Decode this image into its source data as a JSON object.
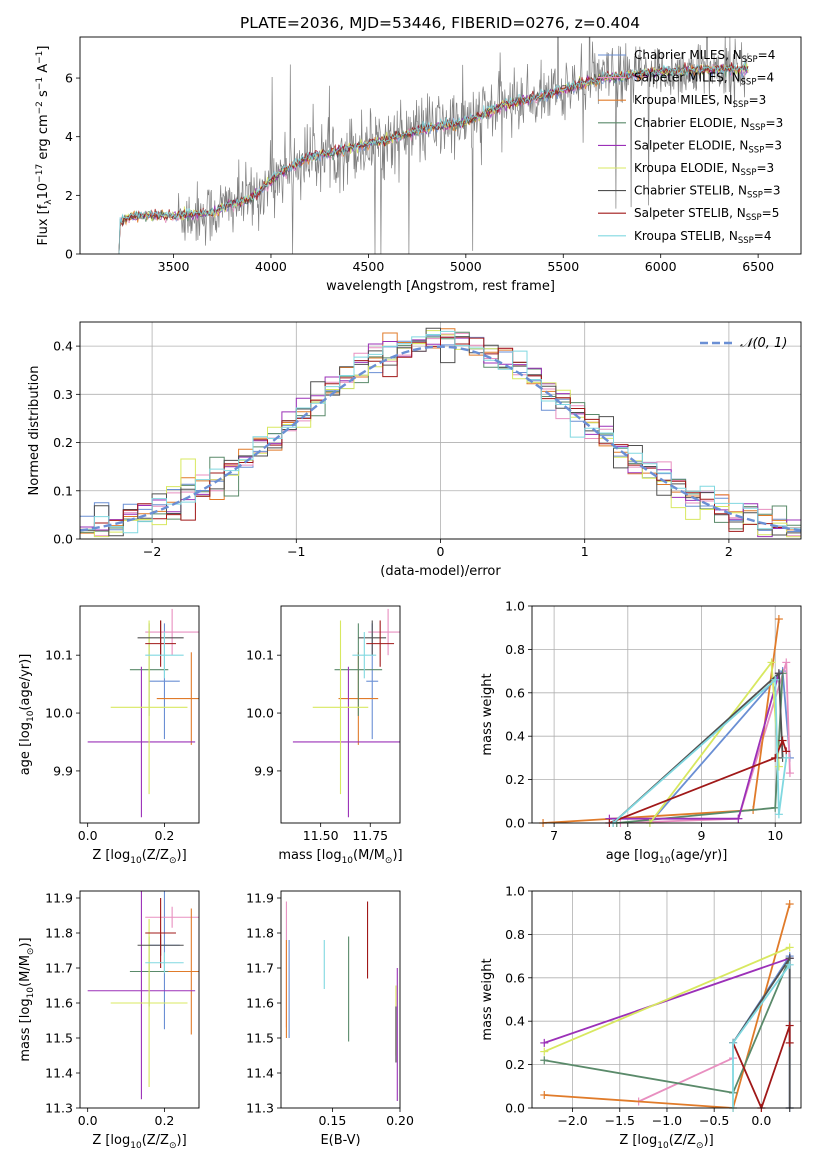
{
  "figure_title": "PLATE=2036, MJD=53446, FIBERID=0276, z=0.404",
  "model_colors": {
    "Chabrier MILES": "#6a8fd4",
    "Salpeter MILES": "#e88fc0",
    "Kroupa MILES": "#e07b2a",
    "Chabrier ELODIE": "#5a8a6a",
    "Salpeter ELODIE": "#9b30b8",
    "Kroupa ELODIE": "#d8e860",
    "Chabrier STELIB": "#505050",
    "Salpeter STELIB": "#a01818",
    "Kroupa STELIB": "#80d8e0"
  },
  "chart_data": [
    {
      "type": "line",
      "id": "spectrum",
      "xlabel": "wavelength [Angstrom, rest frame]",
      "ylabel_parts": [
        "Flux [f",
        "λ",
        "10",
        "−17",
        " erg cm",
        "−2",
        " s",
        "−1",
        " A",
        "−1",
        "]"
      ],
      "xlim": [
        3020,
        6720
      ],
      "ylim": [
        0,
        7.4
      ],
      "xticks": [
        3500,
        4000,
        4500,
        5000,
        5500,
        6000,
        6500
      ],
      "yticks": [
        0,
        2,
        4,
        6
      ],
      "grid": false,
      "legend_position": "upper-right",
      "legend": [
        {
          "base": "Chabrier MILES, N",
          "sub": "SSP",
          "tail": "=4",
          "model": "Chabrier MILES"
        },
        {
          "base": "Salpeter MILES, N",
          "sub": "SSP",
          "tail": "=4",
          "model": "Salpeter MILES"
        },
        {
          "base": "Kroupa MILES, N",
          "sub": "SSP",
          "tail": "=3",
          "model": "Kroupa MILES"
        },
        {
          "base": "Chabrier ELODIE, N",
          "sub": "SSP",
          "tail": "=3",
          "model": "Chabrier ELODIE"
        },
        {
          "base": "Salpeter ELODIE, N",
          "sub": "SSP",
          "tail": "=3",
          "model": "Salpeter ELODIE"
        },
        {
          "base": "Kroupa ELODIE, N",
          "sub": "SSP",
          "tail": "=3",
          "model": "Kroupa ELODIE"
        },
        {
          "base": "Chabrier STELIB, N",
          "sub": "SSP",
          "tail": "=3",
          "model": "Chabrier STELIB"
        },
        {
          "base": "Salpeter STELIB, N",
          "sub": "SSP",
          "tail": "=5",
          "model": "Salpeter STELIB"
        },
        {
          "base": "Kroupa STELIB, N",
          "sub": "SSP",
          "tail": "=4",
          "model": "Kroupa STELIB"
        }
      ],
      "observed_color": "#808080",
      "model_continuum": [
        [
          3220,
          0
        ],
        [
          3225,
          1.1
        ],
        [
          3300,
          1.3
        ],
        [
          3500,
          1.3
        ],
        [
          3700,
          1.4
        ],
        [
          3800,
          1.7
        ],
        [
          3900,
          1.9
        ],
        [
          3950,
          2.2
        ],
        [
          4050,
          2.8
        ],
        [
          4200,
          3.3
        ],
        [
          4400,
          3.6
        ],
        [
          4600,
          3.9
        ],
        [
          4800,
          4.3
        ],
        [
          4900,
          4.4
        ],
        [
          5000,
          4.5
        ],
        [
          5200,
          5.1
        ],
        [
          5400,
          5.4
        ],
        [
          5500,
          5.6
        ],
        [
          5700,
          6.0
        ],
        [
          6000,
          6.2
        ],
        [
          6300,
          6.3
        ],
        [
          6450,
          6.3
        ]
      ]
    },
    {
      "type": "step",
      "id": "residuals",
      "xlabel": "(data-model)/error",
      "ylabel": "Normed distribution",
      "xlim": [
        -2.5,
        2.5
      ],
      "ylim": [
        0,
        0.45
      ],
      "xticks": [
        -2,
        -1,
        0,
        1,
        2
      ],
      "yticks": [
        0.0,
        0.1,
        0.2,
        0.3,
        0.4
      ],
      "grid": true,
      "legend_position": "upper-right",
      "legend_label": "𝒩(0, 1)",
      "reference_curve": "normal(0,1)",
      "reference_color": "#6a8fd4",
      "bin_width": 0.1
    },
    {
      "type": "errorbar",
      "id": "z-age",
      "xlabel_parts": [
        "Z [log",
        "10",
        "(Z/Z",
        "⊙",
        ")]"
      ],
      "ylabel_parts": [
        "age  [log",
        "10",
        "(age/yr)]"
      ],
      "xlim": [
        -0.02,
        0.29
      ],
      "ylim": [
        9.81,
        10.185
      ],
      "xticks": [
        0.0,
        0.2
      ],
      "yticks": [
        9.9,
        10.0,
        10.1
      ],
      "points": [
        {
          "model": "Chabrier MILES",
          "x": 0.2,
          "xerr": 0.04,
          "y": 10.055,
          "yerr": 0.1
        },
        {
          "model": "Salpeter MILES",
          "x": 0.22,
          "xerr": 0.07,
          "y": 10.14,
          "yerr": 0.04
        },
        {
          "model": "Kroupa MILES",
          "x": 0.27,
          "xerr": 0.09,
          "y": 10.025,
          "yerr": 0.08
        },
        {
          "model": "Chabrier ELODIE",
          "x": 0.16,
          "xerr": 0.05,
          "y": 10.075,
          "yerr": 0.08
        },
        {
          "model": "Salpeter ELODIE",
          "x": 0.14,
          "xerr": 0.14,
          "y": 9.95,
          "yerr": 0.13
        },
        {
          "model": "Kroupa ELODIE",
          "x": 0.16,
          "xerr": 0.1,
          "y": 10.01,
          "yerr": 0.15
        },
        {
          "model": "Chabrier STELIB",
          "x": 0.19,
          "xerr": 0.06,
          "y": 10.13,
          "yerr": 0.03
        },
        {
          "model": "Salpeter STELIB",
          "x": 0.19,
          "xerr": 0.04,
          "y": 10.12,
          "yerr": 0.04
        },
        {
          "model": "Kroupa STELIB",
          "x": 0.2,
          "xerr": 0.05,
          "y": 10.1,
          "yerr": 0.04
        }
      ]
    },
    {
      "type": "errorbar",
      "id": "mass-age",
      "xlabel_parts": [
        "mass [log",
        "10",
        "(M/M",
        "⊙",
        ")]"
      ],
      "ylabel": "",
      "xlim": [
        11.3,
        11.9
      ],
      "ylim": [
        9.81,
        10.185
      ],
      "xticks": [
        11.5,
        11.75
      ],
      "xticklabels": [
        "11.50",
        "11.75"
      ],
      "yticks": [
        9.9,
        10.0,
        10.1
      ],
      "points": [
        {
          "model": "Chabrier MILES",
          "x": 11.76,
          "xerr": 0.03,
          "y": 10.055,
          "yerr": 0.1
        },
        {
          "model": "Salpeter MILES",
          "x": 11.84,
          "xerr": 0.1,
          "y": 10.14,
          "yerr": 0.04
        },
        {
          "model": "Kroupa MILES",
          "x": 11.69,
          "xerr": 0.1,
          "y": 10.025,
          "yerr": 0.08
        },
        {
          "model": "Chabrier ELODIE",
          "x": 11.69,
          "xerr": 0.12,
          "y": 10.075,
          "yerr": 0.08
        },
        {
          "model": "Salpeter ELODIE",
          "x": 11.64,
          "xerr": 0.28,
          "y": 9.95,
          "yerr": 0.13
        },
        {
          "model": "Kroupa ELODIE",
          "x": 11.6,
          "xerr": 0.14,
          "y": 10.01,
          "yerr": 0.15
        },
        {
          "model": "Chabrier STELIB",
          "x": 11.76,
          "xerr": 0.07,
          "y": 10.13,
          "yerr": 0.03
        },
        {
          "model": "Salpeter STELIB",
          "x": 11.8,
          "xerr": 0.07,
          "y": 10.12,
          "yerr": 0.04
        },
        {
          "model": "Kroupa STELIB",
          "x": 11.72,
          "xerr": 0.06,
          "y": 10.1,
          "yerr": 0.04
        }
      ]
    },
    {
      "type": "line",
      "id": "age-weight",
      "xlabel_parts": [
        "age  [log",
        "10",
        "(age/yr)]"
      ],
      "ylabel": "mass weight",
      "xlim": [
        6.7,
        10.35
      ],
      "ylim": [
        0,
        1.0
      ],
      "xticks": [
        7,
        8,
        9,
        10
      ],
      "yticks": [
        0.0,
        0.2,
        0.4,
        0.6,
        0.8,
        1.0
      ],
      "grid": true,
      "series": [
        {
          "model": "Chabrier MILES",
          "x": [
            8.3,
            10.1,
            10.2
          ],
          "y": [
            0.0,
            0.7,
            0.3
          ]
        },
        {
          "model": "Salpeter MILES",
          "x": [
            7.9,
            9.5,
            10.15,
            10.2
          ],
          "y": [
            0.0,
            0.02,
            0.74,
            0.23
          ]
        },
        {
          "model": "Kroupa MILES",
          "x": [
            6.85,
            9.7,
            10.05
          ],
          "y": [
            0.0,
            0.06,
            0.94
          ]
        },
        {
          "model": "Chabrier ELODIE",
          "x": [
            7.85,
            10.0,
            10.1
          ],
          "y": [
            0.0,
            0.07,
            0.69
          ]
        },
        {
          "model": "Salpeter ELODIE",
          "x": [
            7.75,
            9.5,
            10.05
          ],
          "y": [
            0.02,
            0.02,
            0.69
          ]
        },
        {
          "model": "Kroupa ELODIE",
          "x": [
            8.3,
            9.95,
            10.05
          ],
          "y": [
            0.0,
            0.74,
            0.26
          ]
        },
        {
          "model": "Chabrier STELIB",
          "x": [
            7.8,
            10.05,
            10.1
          ],
          "y": [
            0.0,
            0.69,
            0.3
          ]
        },
        {
          "model": "Salpeter STELIB",
          "x": [
            7.75,
            10.0,
            10.1,
            10.15
          ],
          "y": [
            0.0,
            0.3,
            0.38,
            0.33
          ]
        },
        {
          "model": "Kroupa STELIB",
          "x": [
            7.8,
            10.0,
            10.05,
            10.15
          ],
          "y": [
            0.0,
            0.66,
            0.04,
            0.3
          ]
        }
      ]
    },
    {
      "type": "errorbar",
      "id": "z-mass",
      "xlabel_parts": [
        "Z [log",
        "10",
        "(Z/Z",
        "⊙",
        ")]"
      ],
      "ylabel_parts": [
        "mass [log",
        "10",
        "(M/M",
        "⊙",
        ")]"
      ],
      "xlim": [
        -0.02,
        0.29
      ],
      "ylim": [
        11.3,
        11.92
      ],
      "xticks": [
        0.0,
        0.2
      ],
      "yticks": [
        11.3,
        11.4,
        11.5,
        11.6,
        11.7,
        11.8,
        11.9
      ],
      "points": [
        {
          "model": "Chabrier MILES",
          "x": 0.2,
          "xerr": 0.04,
          "y": 11.765,
          "yerr": 0.24
        },
        {
          "model": "Salpeter MILES",
          "x": 0.22,
          "xerr": 0.07,
          "y": 11.845,
          "yerr": 0.03
        },
        {
          "model": "Kroupa MILES",
          "x": 0.27,
          "xerr": 0.09,
          "y": 11.69,
          "yerr": 0.18
        },
        {
          "model": "Chabrier ELODIE",
          "x": 0.16,
          "xerr": 0.05,
          "y": 11.69,
          "yerr": 0.1
        },
        {
          "model": "Salpeter ELODIE",
          "x": 0.14,
          "xerr": 0.14,
          "y": 11.635,
          "yerr": 0.31
        },
        {
          "model": "Kroupa ELODIE",
          "x": 0.16,
          "xerr": 0.1,
          "y": 11.6,
          "yerr": 0.24
        },
        {
          "model": "Chabrier STELIB",
          "x": 0.19,
          "xerr": 0.06,
          "y": 11.765,
          "yerr": 0.03
        },
        {
          "model": "Salpeter STELIB",
          "x": 0.19,
          "xerr": 0.04,
          "y": 11.8,
          "yerr": 0.1
        },
        {
          "model": "Kroupa STELIB",
          "x": 0.2,
          "xerr": 0.05,
          "y": 11.715,
          "yerr": 0.03
        }
      ]
    },
    {
      "type": "errorbar",
      "id": "ebv-mass",
      "xlabel": "E(B-V)",
      "ylabel": "",
      "xlim": [
        0.112,
        0.2
      ],
      "ylim": [
        11.3,
        11.92
      ],
      "xticks": [
        0.15,
        0.2
      ],
      "xticklabels": [
        "0.15",
        "0.20"
      ],
      "yticks": [
        11.3,
        11.4,
        11.5,
        11.6,
        11.7,
        11.8,
        11.9
      ],
      "points": [
        {
          "model": "Chabrier MILES",
          "x": 0.118,
          "xerr": 0.0,
          "y": 11.64,
          "yerr": 0.14
        },
        {
          "model": "Salpeter MILES",
          "x": 0.116,
          "xerr": 0.0,
          "y": 11.71,
          "yerr": 0.18
        },
        {
          "model": "Kroupa MILES",
          "x": 0.116,
          "xerr": 0.0,
          "y": 11.64,
          "yerr": 0.14
        },
        {
          "model": "Chabrier ELODIE",
          "x": 0.162,
          "xerr": 0.0,
          "y": 11.64,
          "yerr": 0.15
        },
        {
          "model": "Salpeter ELODIE",
          "x": 0.198,
          "xerr": 0.0,
          "y": 11.51,
          "yerr": 0.19
        },
        {
          "model": "Kroupa ELODIE",
          "x": 0.197,
          "xerr": 0.0,
          "y": 11.55,
          "yerr": 0.1
        },
        {
          "model": "Chabrier STELIB",
          "x": 0.197,
          "xerr": 0.0,
          "y": 11.51,
          "yerr": 0.08
        },
        {
          "model": "Salpeter STELIB",
          "x": 0.176,
          "xerr": 0.0,
          "y": 11.78,
          "yerr": 0.11
        },
        {
          "model": "Kroupa STELIB",
          "x": 0.144,
          "xerr": 0.0,
          "y": 11.71,
          "yerr": 0.07
        }
      ]
    },
    {
      "type": "line",
      "id": "z-weight",
      "xlabel_parts": [
        "Z [log",
        "10",
        "(Z/Z",
        "⊙",
        ")]"
      ],
      "ylabel": "mass weight",
      "xlim": [
        -2.43,
        0.42
      ],
      "ylim": [
        0,
        1.0
      ],
      "xticks": [
        -2.0,
        -1.5,
        -1.0,
        -0.5,
        0.0
      ],
      "xticklabels": [
        "−2.0",
        "−1.5",
        "−1.0",
        "−0.5",
        "0.0"
      ],
      "yticks": [
        0.0,
        0.2,
        0.4,
        0.6,
        0.8,
        1.0
      ],
      "grid": true,
      "series": [
        {
          "model": "Chabrier MILES",
          "x": [
            -0.3,
            0.3,
            0.3
          ],
          "y": [
            0.3,
            0.7,
            0.0
          ]
        },
        {
          "model": "Salpeter MILES",
          "x": [
            -1.3,
            -0.3,
            -0.3
          ],
          "y": [
            0.03,
            0.23,
            0.3
          ]
        },
        {
          "model": "Kroupa MILES",
          "x": [
            -2.3,
            -0.3,
            0.3
          ],
          "y": [
            0.06,
            0.0,
            0.94
          ]
        },
        {
          "model": "Chabrier ELODIE",
          "x": [
            -2.3,
            -0.3,
            0.3
          ],
          "y": [
            0.22,
            0.07,
            0.69
          ]
        },
        {
          "model": "Salpeter ELODIE",
          "x": [
            -2.3,
            0.3
          ],
          "y": [
            0.3,
            0.69
          ]
        },
        {
          "model": "Kroupa ELODIE",
          "x": [
            -2.3,
            0.3
          ],
          "y": [
            0.26,
            0.74
          ]
        },
        {
          "model": "Chabrier STELIB",
          "x": [
            -0.3,
            0.3,
            0.3
          ],
          "y": [
            0.3,
            0.69,
            0.0
          ]
        },
        {
          "model": "Salpeter STELIB",
          "x": [
            -0.3,
            0.0,
            0.3,
            0.3
          ],
          "y": [
            0.3,
            0.0,
            0.38,
            0.3
          ]
        },
        {
          "model": "Kroupa STELIB",
          "x": [
            -0.3,
            -0.3,
            0.3
          ],
          "y": [
            0.0,
            0.3,
            0.66
          ]
        }
      ]
    }
  ]
}
